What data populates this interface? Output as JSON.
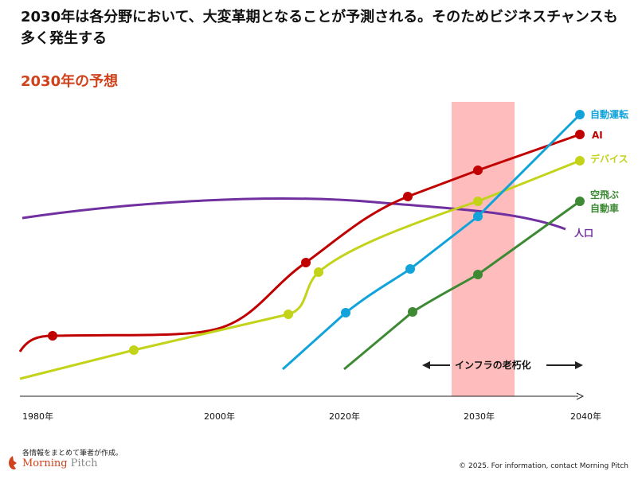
{
  "title": "2030年は各分野において、大変革期となることが予測される。そのためビジネスチャンスも多く発生する",
  "subtitle": "2030年の予想",
  "x_labels": [
    "1980年",
    "2000年",
    "2020年",
    "2030年",
    "2040年"
  ],
  "series": [
    {
      "name": "自動運転",
      "color": "#12a3da"
    },
    {
      "name": "AI",
      "color": "#c00000"
    },
    {
      "name": "デバイス",
      "color": "#c3d319"
    },
    {
      "name": "空飛ぶ",
      "name2": "自動車",
      "color": "#3e8a34"
    },
    {
      "name": "人口",
      "color": "#7030a0"
    }
  ],
  "band_label": "インフラの老朽化",
  "band_color": "#ffbcbc",
  "footer": {
    "note": "各情報をまとめて筆者が作成。",
    "logo_a": "Morning",
    "logo_b": " Pitch",
    "copyright": "© 2025. For information, contact Morning Pitch"
  }
}
